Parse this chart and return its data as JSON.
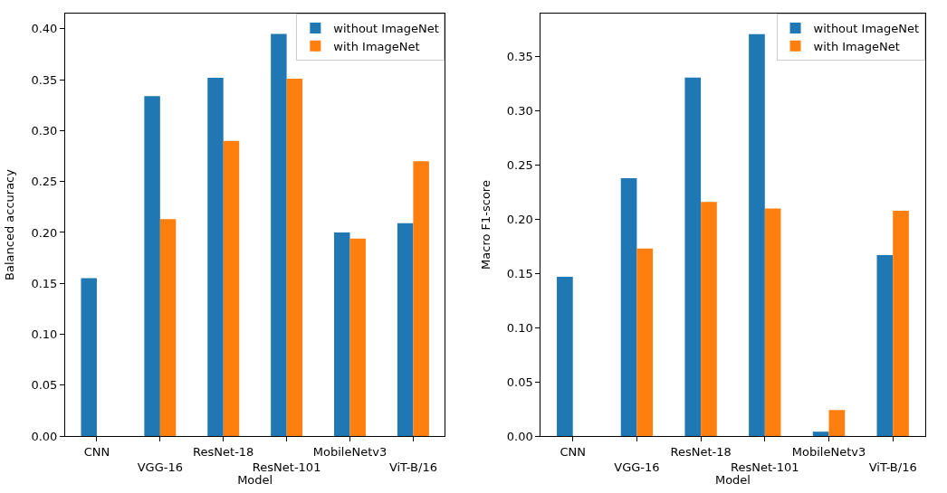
{
  "chart_data": [
    {
      "type": "bar",
      "xlabel": "Model",
      "ylabel": "Balanced accuracy",
      "categories": [
        "CNN",
        "VGG-16",
        "ResNet-18",
        "ResNet-101",
        "MobileNetv3",
        "ViT-B/16"
      ],
      "series": [
        {
          "name": "without ImageNet",
          "color": "#1f77b4",
          "values": [
            0.155,
            0.334,
            0.352,
            0.395,
            0.2,
            0.209
          ]
        },
        {
          "name": "with ImageNet",
          "color": "#ff7f0e",
          "values": [
            null,
            0.213,
            0.29,
            0.351,
            0.194,
            0.27
          ]
        }
      ],
      "ylim": [
        0,
        0.415
      ],
      "yticks": [
        {
          "value": 0,
          "label": "0.00"
        },
        {
          "value": 0.05,
          "label": "0.05"
        },
        {
          "value": 0.1,
          "label": "0.10"
        },
        {
          "value": 0.15,
          "label": "0.15"
        },
        {
          "value": 0.2,
          "label": "0.20"
        },
        {
          "value": 0.25,
          "label": "0.25"
        },
        {
          "value": 0.3,
          "label": "0.30"
        },
        {
          "value": 0.35,
          "label": "0.35"
        },
        {
          "value": 0.4,
          "label": "0.40"
        }
      ],
      "legend": "top right"
    },
    {
      "type": "bar",
      "xlabel": "Model",
      "ylabel": "Macro F1-score",
      "categories": [
        "CNN",
        "VGG-16",
        "ResNet-18",
        "ResNet-101",
        "MobileNetv3",
        "ViT-B/16"
      ],
      "series": [
        {
          "name": "without ImageNet",
          "color": "#1f77b4",
          "values": [
            0.147,
            0.238,
            0.331,
            0.371,
            0.004,
            0.167
          ]
        },
        {
          "name": "with ImageNet",
          "color": "#ff7f0e",
          "values": [
            null,
            0.173,
            0.216,
            0.21,
            0.024,
            0.208
          ]
        }
      ],
      "ylim": [
        0,
        0.39
      ],
      "yticks": [
        {
          "value": 0,
          "label": "0.00"
        },
        {
          "value": 0.05,
          "label": "0.05"
        },
        {
          "value": 0.1,
          "label": "0.10"
        },
        {
          "value": 0.15,
          "label": "0.15"
        },
        {
          "value": 0.2,
          "label": "0.20"
        },
        {
          "value": 0.25,
          "label": "0.25"
        },
        {
          "value": 0.3,
          "label": "0.30"
        },
        {
          "value": 0.35,
          "label": "0.35"
        }
      ],
      "legend": "top right"
    }
  ]
}
